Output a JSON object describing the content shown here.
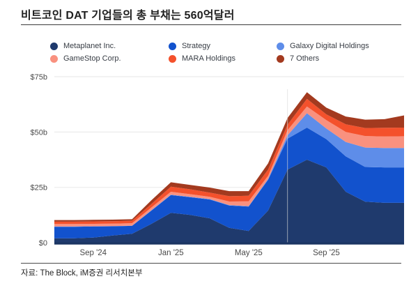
{
  "header": {
    "title": "비트코인 DAT 기업들의 총 부채는 560억달러"
  },
  "footer": {
    "source": "자료: The Block, iM증권 리서치본부"
  },
  "legend": {
    "items": [
      {
        "label": "Metaplanet Inc.",
        "color": "#1f3a6d"
      },
      {
        "label": "Strategy",
        "color": "#1252cd"
      },
      {
        "label": "Galaxy Digital Holdings",
        "color": "#5e8de9"
      },
      {
        "label": "GameStop Corp.",
        "color": "#f9917f"
      },
      {
        "label": "MARA Holdings",
        "color": "#f4512c"
      },
      {
        "label": "7 Others",
        "color": "#a33a1f"
      }
    ]
  },
  "chart_data": {
    "type": "area",
    "stacked": true,
    "title": "",
    "xlabel": "",
    "ylabel": "",
    "ylim": [
      0,
      75
    ],
    "grid": "horizontal",
    "legend_position": "top",
    "x": [
      "Jul '24",
      "Aug '24",
      "Sep '24",
      "Oct '24",
      "Nov '24",
      "Dec '24",
      "Jan '25",
      "Feb '25",
      "Mar '25",
      "Apr '25",
      "May '25",
      "Jun '25",
      "Jul '25",
      "Aug '25",
      "Sep '25",
      "Oct '25",
      "Nov '25",
      "Dec '25",
      "Jan '26"
    ],
    "x_tick_indices": [
      2,
      6,
      10,
      14
    ],
    "x_tick_labels": [
      "Sep '24",
      "Jan '25",
      "May '25",
      "Sep '25"
    ],
    "y_ticks": [
      {
        "label": "$0",
        "value": 0
      },
      {
        "label": "$25b",
        "value": 25
      },
      {
        "label": "$50b",
        "value": 50
      },
      {
        "label": "$75b",
        "value": 75
      }
    ],
    "series": [
      {
        "name": "Metaplanet Inc.",
        "color": "#1f3a6d",
        "values": [
          2.0,
          2.0,
          2.3,
          3.2,
          4.0,
          8.5,
          13.5,
          12.5,
          11.0,
          6.7,
          5.3,
          14.5,
          33.0,
          37.5,
          34.0,
          23.0,
          18.5,
          18.0,
          18.0
        ]
      },
      {
        "name": "Strategy",
        "color": "#1252cd",
        "values": [
          5.2,
          5.2,
          5.0,
          4.2,
          3.6,
          6.0,
          8.0,
          8.0,
          8.5,
          10.1,
          11.0,
          13.9,
          14.0,
          14.5,
          12.8,
          16.0,
          15.7,
          16.0,
          16.0
        ]
      },
      {
        "name": "Galaxy Digital Holdings",
        "color": "#5e8de9",
        "values": [
          0.1,
          0.1,
          0.1,
          0.1,
          0.1,
          0.2,
          0.2,
          0.2,
          0.2,
          0.2,
          0.2,
          0.4,
          1.5,
          6.5,
          4.8,
          6.5,
          8.8,
          8.8,
          8.8
        ]
      },
      {
        "name": "GameStop Corp.",
        "color": "#f9917f",
        "values": [
          1.1,
          1.1,
          1.1,
          1.1,
          1.1,
          1.2,
          1.3,
          1.2,
          1.0,
          1.6,
          2.2,
          1.4,
          2.3,
          3.0,
          3.8,
          4.5,
          5.2,
          5.2,
          5.3
        ]
      },
      {
        "name": "MARA Holdings",
        "color": "#f4512c",
        "values": [
          1.1,
          1.1,
          1.1,
          1.1,
          1.1,
          1.6,
          2.3,
          2.2,
          1.9,
          2.4,
          2.5,
          2.8,
          2.5,
          3.5,
          2.6,
          3.5,
          3.6,
          3.9,
          3.9
        ]
      },
      {
        "name": "7 Others",
        "color": "#a33a1f",
        "values": [
          0.7,
          0.7,
          0.7,
          0.7,
          0.7,
          1.7,
          2.0,
          2.0,
          2.3,
          2.3,
          2.1,
          2.8,
          3.0,
          3.0,
          3.0,
          3.5,
          3.8,
          3.9,
          5.5
        ]
      }
    ],
    "seam_index": 12,
    "colors": {
      "gridline": "#ebebeb",
      "axis_line": "#1b3562",
      "tick_text": "#4a4a4a"
    }
  }
}
